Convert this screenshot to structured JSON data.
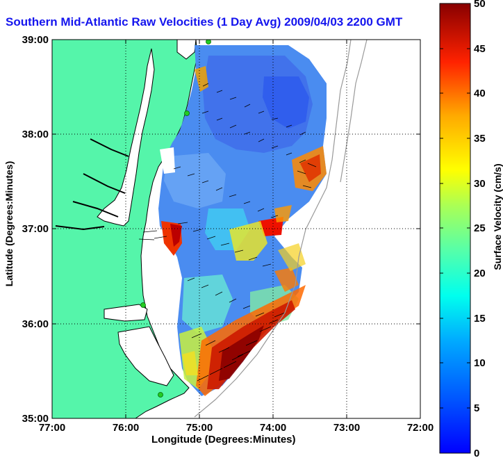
{
  "title": "Southern Mid-Atlantic Raw Velocities (1 Day Avg) 2009/04/03 2200 GMT",
  "map": {
    "xlabel": "Longitude (Degrees:Minutes)",
    "ylabel": "Latitude (Degrees:Minutes)",
    "lon_ticks": [
      "77:00",
      "76:00",
      "75:00",
      "74:00",
      "73:00",
      "72:00"
    ],
    "lat_ticks": [
      "39:00",
      "38:00",
      "37:00",
      "36:00",
      "35:00"
    ],
    "lon_range": [
      -77,
      -72
    ],
    "lat_range": [
      35,
      39
    ],
    "grid": "dotted",
    "colors": {
      "land": "#55f5aa",
      "water": "#ffffff",
      "coast": "#000000",
      "contour": "#999999",
      "station": "#22cc22"
    }
  },
  "colorbar": {
    "label": "Surface Velocity (cm/s)",
    "units": "cm/s",
    "min": 0,
    "max": 50,
    "ticks": [
      "50",
      "45",
      "40",
      "35",
      "30",
      "25",
      "20",
      "15",
      "10",
      "5",
      "0"
    ],
    "colormap": "jet"
  }
}
